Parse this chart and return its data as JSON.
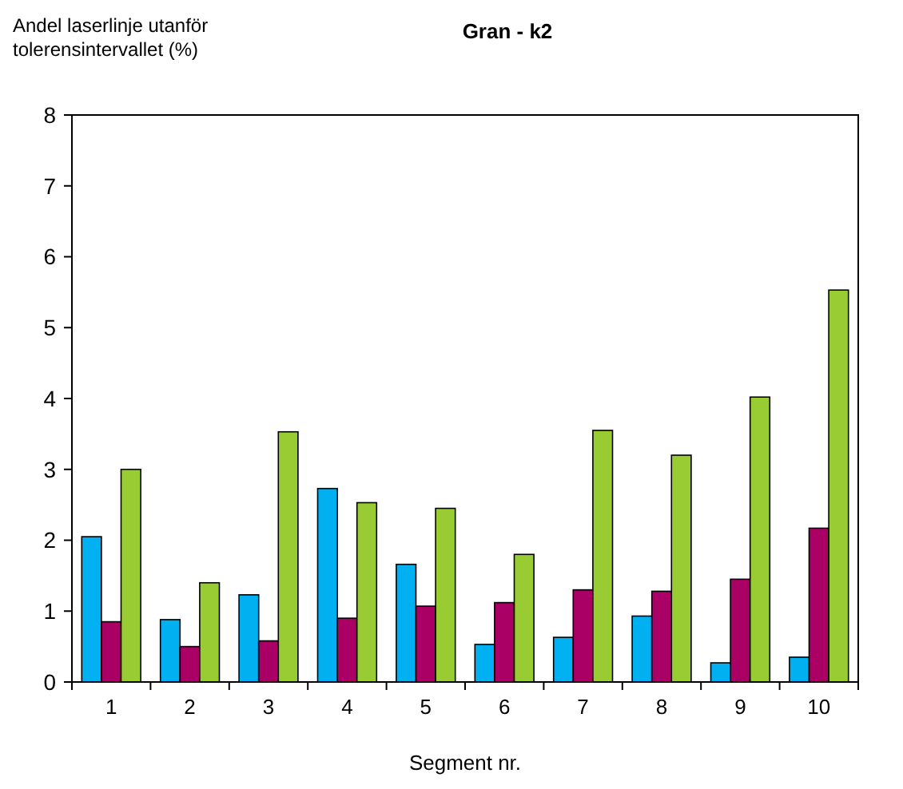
{
  "chart_data": {
    "type": "bar",
    "title": "Gran - k2",
    "xlabel": "Segment nr.",
    "ylabel": "Andel laserlinje utanför\ntolerensintervallet (%)",
    "categories": [
      "1",
      "2",
      "3",
      "4",
      "5",
      "6",
      "7",
      "8",
      "9",
      "10"
    ],
    "series": [
      {
        "color": "#00b0f0",
        "values": [
          2.05,
          0.88,
          1.23,
          2.73,
          1.66,
          0.53,
          0.63,
          0.93,
          0.27,
          0.35
        ]
      },
      {
        "color": "#aa0066",
        "values": [
          0.85,
          0.5,
          0.58,
          0.9,
          1.07,
          1.12,
          1.3,
          1.28,
          1.45,
          2.17
        ]
      },
      {
        "color": "#99cc33",
        "values": [
          3.0,
          1.4,
          3.53,
          2.53,
          2.45,
          1.8,
          3.55,
          3.2,
          4.02,
          5.53
        ]
      }
    ],
    "ylim": [
      0,
      8
    ],
    "yticks": [
      0,
      1,
      2,
      3,
      4,
      5,
      6,
      7,
      8
    ],
    "grid": false
  }
}
